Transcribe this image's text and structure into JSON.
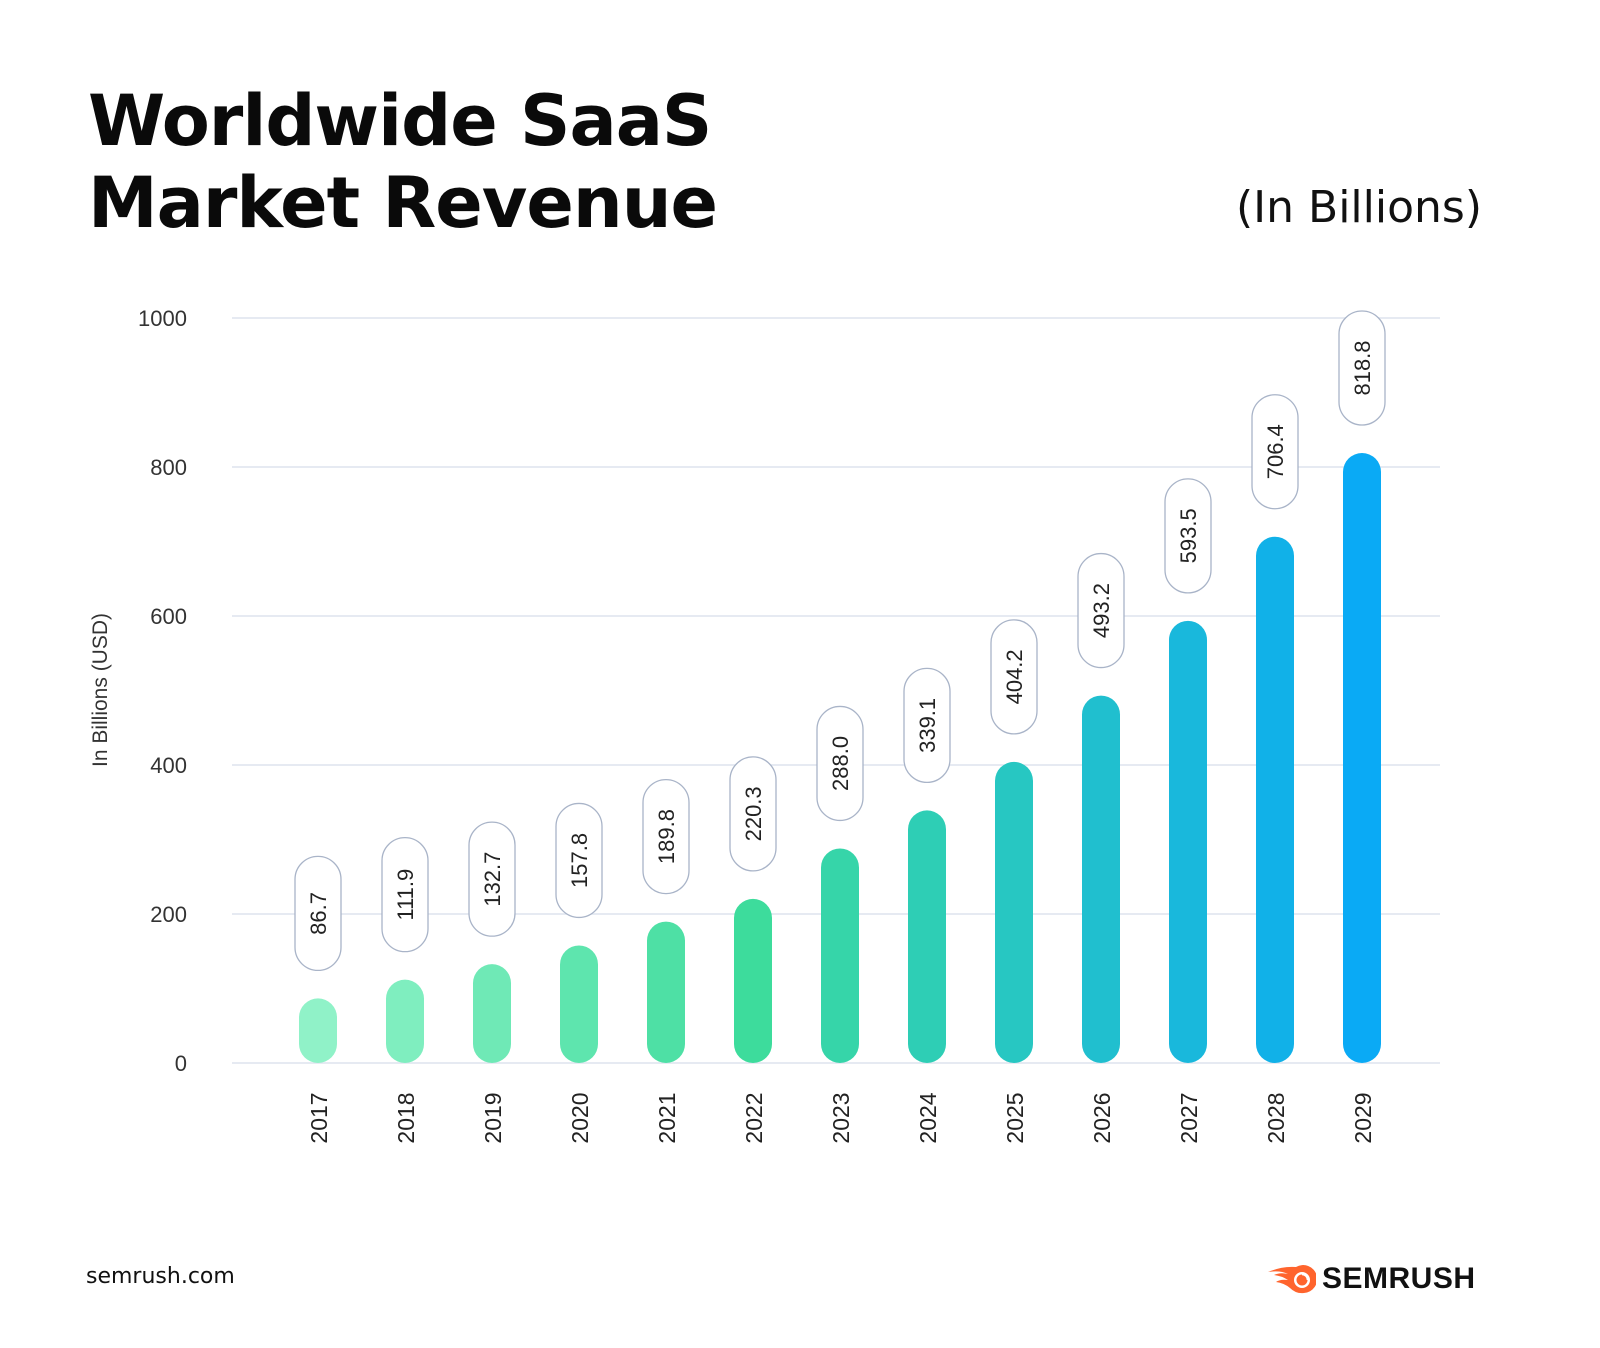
{
  "title_line1": "Worldwide SaaS",
  "title_line2": "Market Revenue",
  "unit_note": "(In Billions)",
  "source": "semrush.com",
  "brand": {
    "name": "SEMRUSH",
    "icon": "semrush-flame-logo-icon",
    "color": "#ff642d"
  },
  "chart_data": {
    "type": "bar",
    "title": "Worldwide SaaS Market Revenue",
    "xlabel": "",
    "ylabel": "In Billions (USD)",
    "ylim": [
      0,
      1000
    ],
    "yticks": [
      0,
      200,
      400,
      600,
      800,
      1000
    ],
    "grid": true,
    "categories": [
      "2017",
      "2018",
      "2019",
      "2020",
      "2021",
      "2022",
      "2023",
      "2024",
      "2025",
      "2026",
      "2027",
      "2028",
      "2029"
    ],
    "values": [
      86.7,
      111.9,
      132.7,
      157.8,
      189.8,
      220.3,
      288.0,
      339.1,
      404.2,
      493.2,
      593.5,
      706.4,
      818.8
    ],
    "value_labels": [
      "86.7",
      "111.9",
      "132.7",
      "157.8",
      "189.8",
      "220.3",
      "288.0",
      "339.1",
      "404.2",
      "493.2",
      "593.5",
      "706.4",
      "818.8"
    ],
    "colors": {
      "start": "#90f2c8",
      "mid": "#3ddc9c",
      "end": "#0aaaf5",
      "grid": "#dde3ee",
      "label_border": "#a9b4c8"
    }
  }
}
